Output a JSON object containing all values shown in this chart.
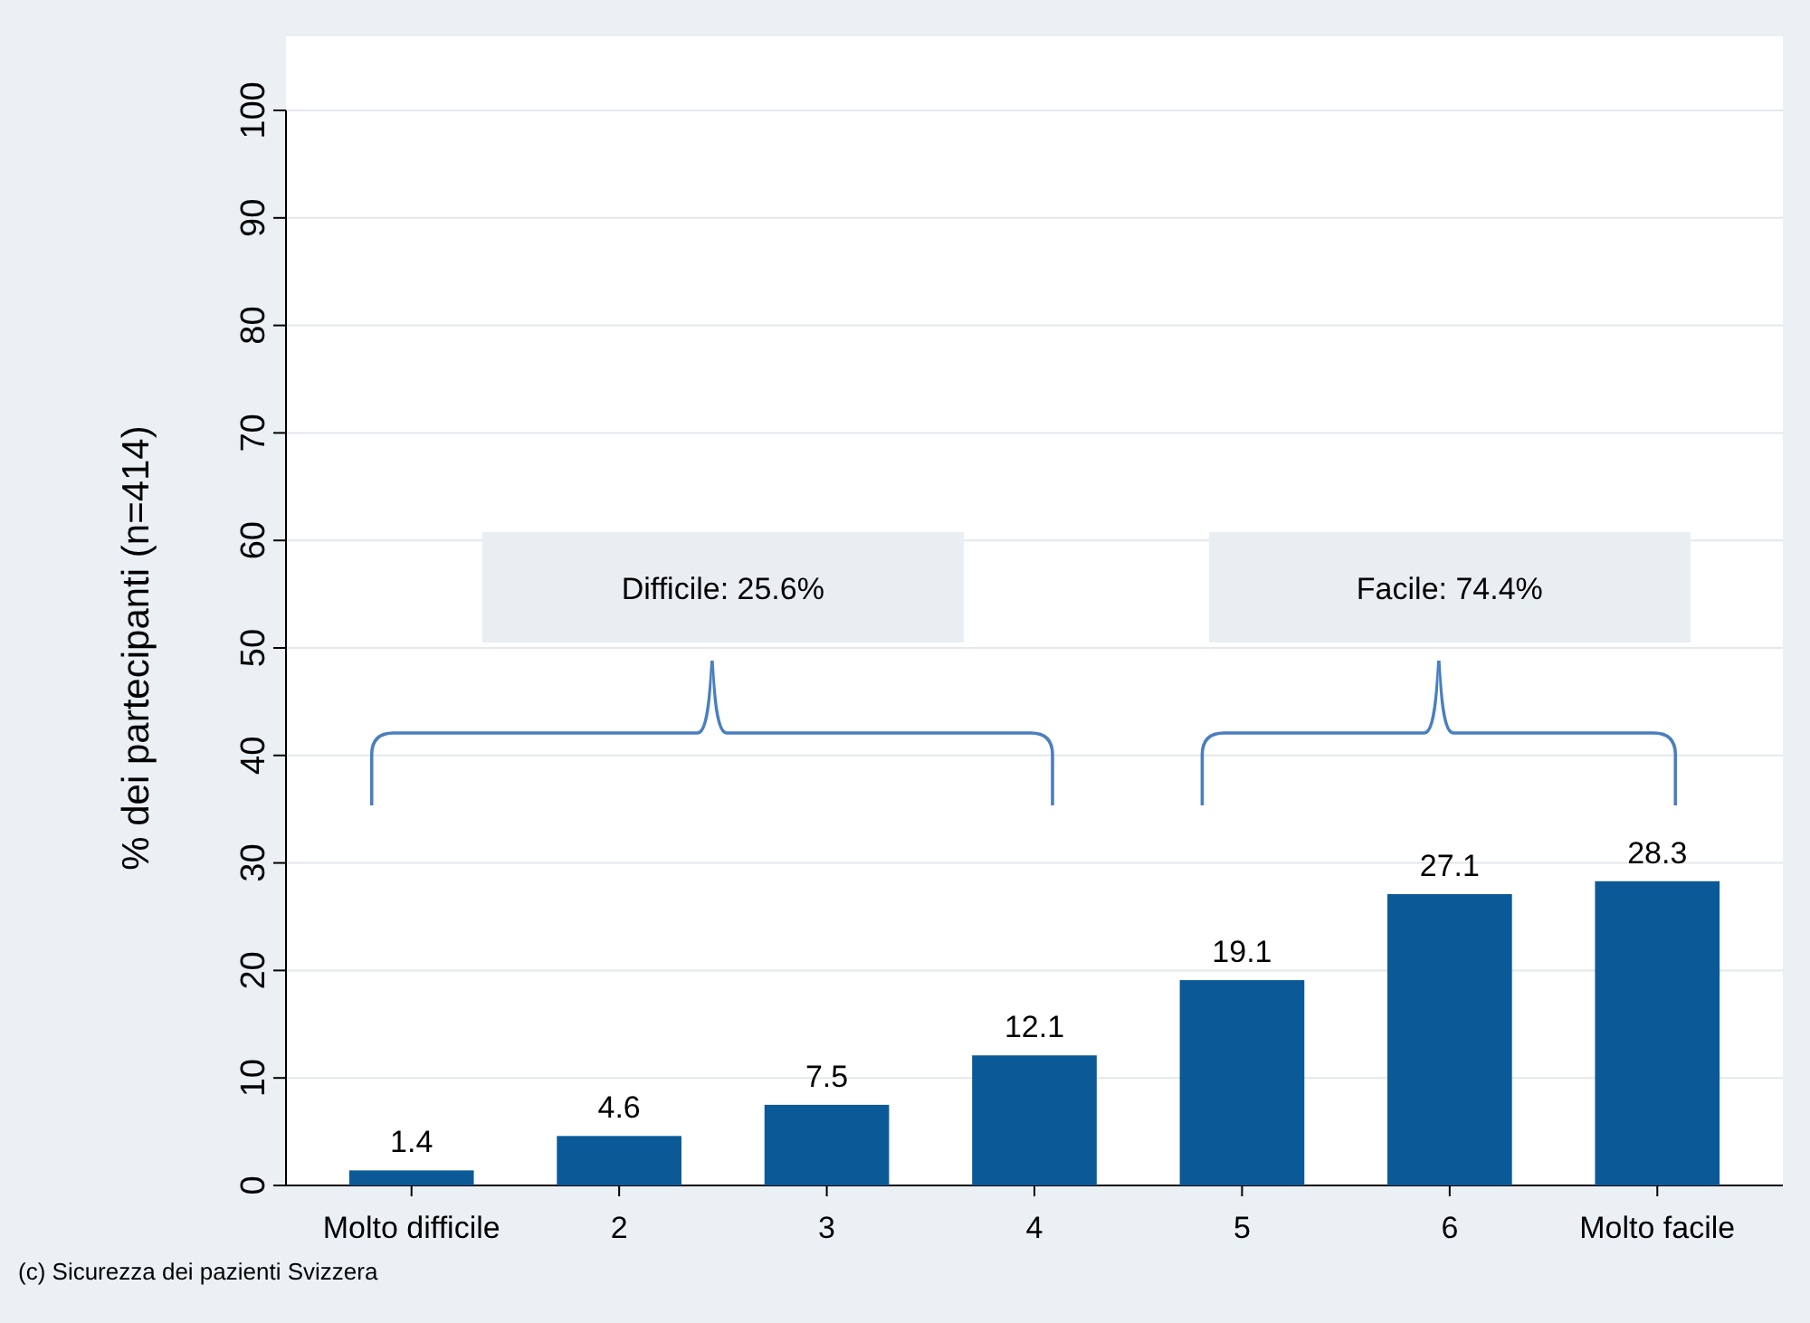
{
  "chart_data": {
    "type": "bar",
    "ylabel": "% dei partecipanti (n=414)",
    "categories": [
      "Molto difficile",
      "2",
      "3",
      "4",
      "5",
      "6",
      "Molto facile"
    ],
    "values": [
      1.4,
      4.6,
      7.5,
      12.1,
      19.1,
      27.1,
      28.3
    ],
    "color": "#0b5a97",
    "data_labels": true,
    "ylim": [
      0,
      100
    ],
    "yticks": [
      0,
      10,
      20,
      30,
      40,
      50,
      60,
      70,
      80,
      90,
      100
    ],
    "grid": "y",
    "annotations": [
      "Difficile: 25.6%",
      "Facile: 74.4%",
      "(c) Sicurezza dei pazienti Svizzera"
    ]
  }
}
